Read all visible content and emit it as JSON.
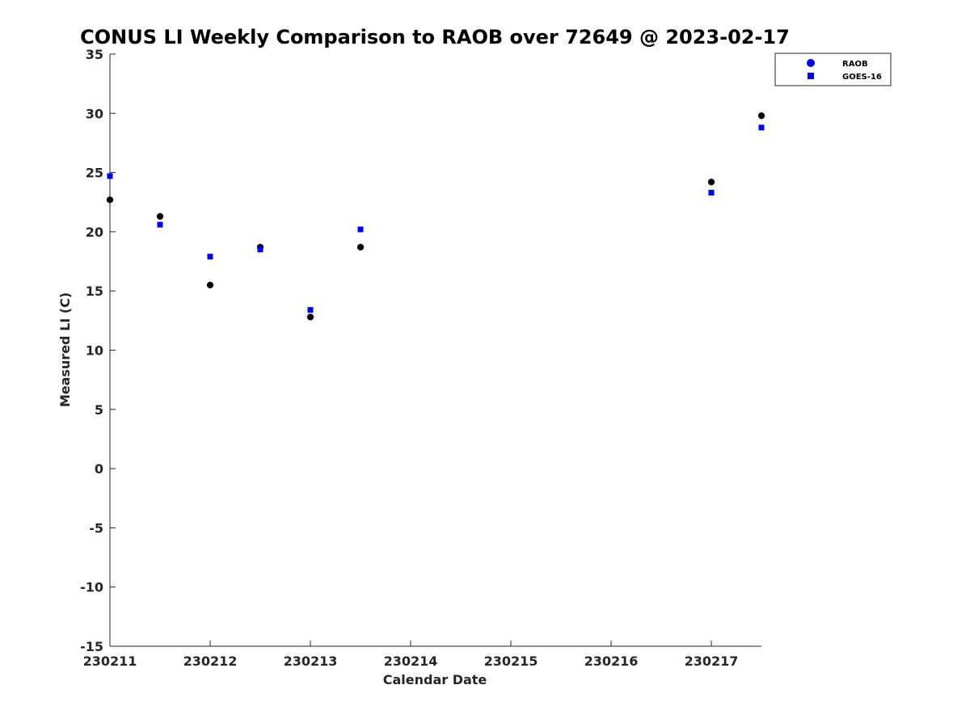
{
  "chart_data": {
    "type": "scatter",
    "title": "CONUS LI Weekly Comparison to RAOB over 72649 @ 2023-02-17",
    "xlabel": "Calendar Date",
    "ylabel": "Measured LI (C)",
    "xlim": [
      0,
      6.5
    ],
    "ylim": [
      -15,
      35
    ],
    "x_ticks": [
      0,
      1,
      2,
      3,
      4,
      5,
      6
    ],
    "x_tick_labels": [
      "230211",
      "230212",
      "230213",
      "230214",
      "230215",
      "230216",
      "230217"
    ],
    "y_ticks": [
      -15,
      -10,
      -5,
      0,
      5,
      10,
      15,
      20,
      25,
      30,
      35
    ],
    "y_tick_labels": [
      "-15",
      "-10",
      "-5",
      "0",
      "5",
      "10",
      "15",
      "20",
      "25",
      "30",
      "35"
    ],
    "grid": false,
    "legend": {
      "placement": "top-right",
      "entries": [
        "RAOB",
        "GOES-16"
      ]
    },
    "series": [
      {
        "name": "RAOB",
        "marker": "circle",
        "color": "#000000",
        "legend_color": "#0000ff",
        "x": [
          0,
          0.5,
          1,
          1.5,
          2,
          2.5,
          6,
          6.5
        ],
        "values": [
          22.7,
          21.3,
          15.5,
          18.7,
          12.8,
          18.7,
          24.2,
          29.8
        ]
      },
      {
        "name": "GOES-16",
        "marker": "square",
        "color": "#0000ff",
        "legend_color": "#0000ff",
        "x": [
          0,
          0.5,
          1,
          1.5,
          2,
          2.5,
          6,
          6.5
        ],
        "values": [
          24.7,
          20.6,
          17.9,
          18.5,
          13.4,
          20.2,
          23.3,
          28.8
        ]
      }
    ]
  }
}
